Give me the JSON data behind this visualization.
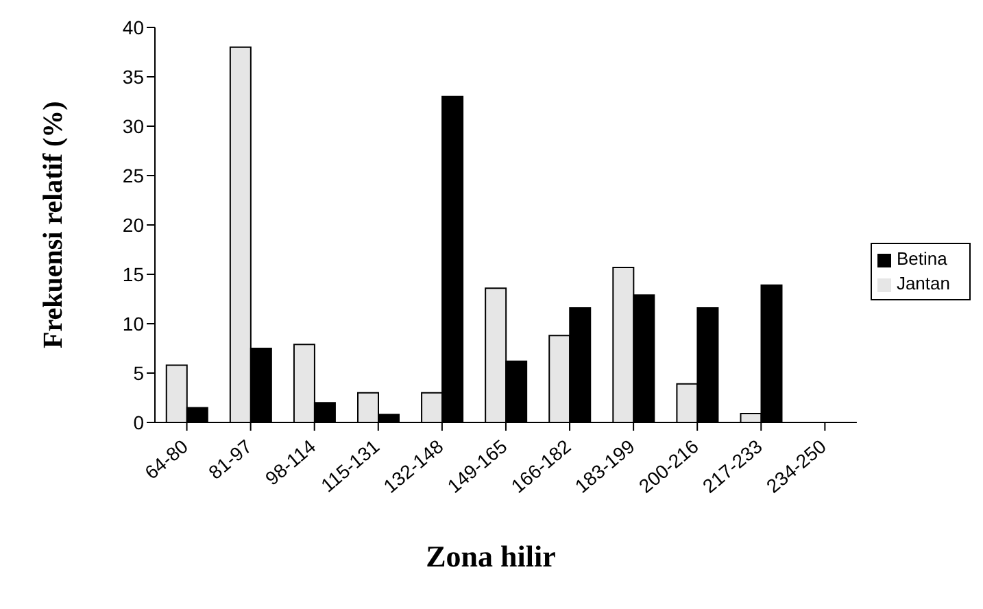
{
  "chart_data": {
    "type": "bar",
    "title": "Zona hilir",
    "ylabel": "Frekuensi relatif (%)",
    "categories": [
      "64-80",
      "81-97",
      "98-114",
      "115-131",
      "132-148",
      "149-165",
      "166-182",
      "183-199",
      "200-216",
      "217-233",
      "234-250"
    ],
    "series": [
      {
        "name": "Jantan",
        "color": "#e6e6e6",
        "values": [
          5.8,
          38,
          7.9,
          3,
          3,
          13.6,
          8.8,
          15.7,
          3.9,
          0.9,
          0
        ]
      },
      {
        "name": "Betina",
        "color": "#000000",
        "values": [
          1.5,
          7.5,
          2,
          0.8,
          33,
          6.2,
          11.6,
          12.9,
          11.6,
          13.9,
          0
        ]
      }
    ],
    "ylim": [
      0,
      40
    ],
    "yticks": [
      0,
      5,
      10,
      15,
      20,
      25,
      30,
      35,
      40
    ],
    "grid": false,
    "legend": "right"
  }
}
